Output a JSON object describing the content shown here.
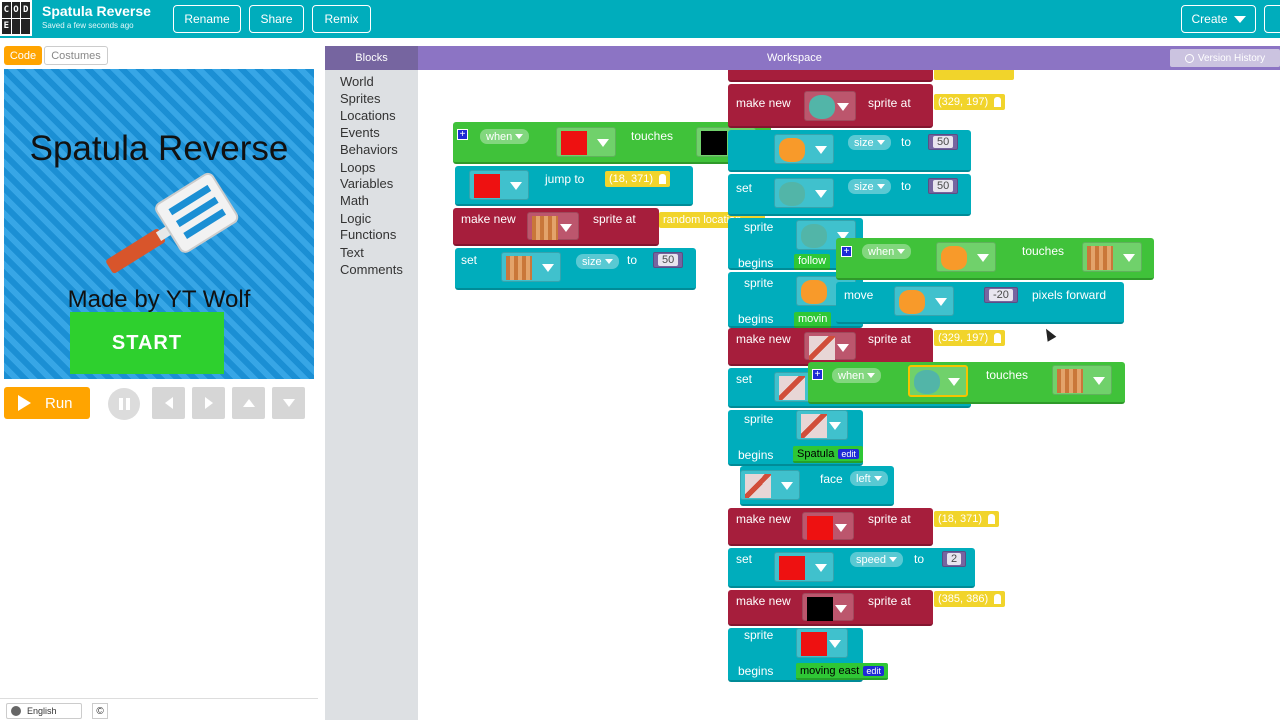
{
  "header": {
    "logo_letters": [
      "C",
      "O",
      "D",
      "E",
      "",
      ""
    ],
    "project_title": "Spatula Reverse",
    "saved_status": "Saved a few seconds ago",
    "rename": "Rename",
    "share": "Share",
    "remix": "Remix",
    "create": "Create"
  },
  "left": {
    "tab_code": "Code",
    "tab_costumes": "Costumes",
    "stage": {
      "title": "Spatula Reverse",
      "credit": "Made by YT Wolf",
      "start": "START"
    },
    "run": "Run",
    "language": "English",
    "copyright": "©"
  },
  "toolbox": {
    "header": "Blocks",
    "categories": [
      "World",
      "Sprites",
      "Locations",
      "Events",
      "Behaviors",
      "Loops",
      "Variables",
      "Math",
      "Logic",
      "Functions",
      "Text",
      "Comments"
    ]
  },
  "workspace": {
    "header": "Workspace",
    "version_history": "Version History",
    "words": {
      "when": "when",
      "touches": "touches",
      "jump_to": "jump to",
      "make_new": "make new",
      "sprite_at": "sprite at",
      "set": "set",
      "size": "size",
      "to": "to",
      "sprite": "sprite",
      "begins": "begins",
      "move": "move",
      "pixels_forward": "pixels forward",
      "face": "face",
      "left": "left",
      "speed": "speed",
      "follow": "follow",
      "movin": "movin",
      "edit": "edit"
    },
    "values": {
      "loc_18_371": "(18, 371)",
      "random_location": "random location",
      "fifty": "50",
      "loc_329_197": "(329, 197)",
      "minus_twenty": "-20",
      "spatula": "Spatula",
      "two": "2",
      "loc_385_386": "(385, 386)",
      "moving_east": "moving east"
    }
  },
  "colors": {
    "header": "#00adbc",
    "run": "#ffa400",
    "teal_block": "#00adbc",
    "red_block": "#a61e3c",
    "green_block": "#40c23a",
    "location_pill": "#f1d42b",
    "number_block": "#7665a0",
    "workspace_header": "#8c74c4",
    "toolbox_header": "#7665a0"
  }
}
